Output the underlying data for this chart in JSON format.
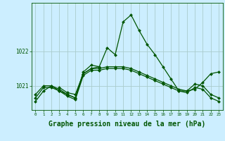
{
  "background_color": "#cceeff",
  "grid_color": "#aacccc",
  "line_color": "#005500",
  "marker_color": "#005500",
  "xlabel": "Graphe pression niveau de la mer (hPa)",
  "xlabel_fontsize": 7,
  "yticks": [
    1021,
    1022
  ],
  "ylim": [
    1020.3,
    1023.4
  ],
  "xlim": [
    -0.5,
    23.5
  ],
  "xticks": [
    0,
    1,
    2,
    3,
    4,
    5,
    6,
    7,
    8,
    9,
    10,
    11,
    12,
    13,
    14,
    15,
    16,
    17,
    18,
    19,
    20,
    21,
    22,
    23
  ],
  "series": [
    {
      "x": [
        0,
        1,
        2,
        3,
        4,
        5,
        6,
        7,
        8,
        9,
        10,
        11,
        12,
        13,
        14,
        15,
        16,
        17,
        18,
        19,
        20,
        21,
        22,
        23
      ],
      "y": [
        1020.55,
        1020.85,
        1021.0,
        1020.85,
        1020.75,
        1020.65,
        1021.4,
        1021.6,
        1021.55,
        1022.1,
        1021.9,
        1022.85,
        1023.05,
        1022.6,
        1022.2,
        1021.9,
        1021.55,
        1021.2,
        1020.85,
        1020.85,
        1020.9,
        1021.1,
        1021.35,
        1021.4
      ]
    },
    {
      "x": [
        0,
        1,
        2,
        3,
        4,
        5,
        6,
        7,
        8,
        9,
        10,
        11,
        12,
        13,
        14,
        15,
        16,
        17,
        18,
        19,
        20,
        21,
        22,
        23
      ],
      "y": [
        1020.75,
        1021.0,
        1021.0,
        1020.9,
        1020.75,
        1020.65,
        1021.35,
        1021.5,
        1021.5,
        1021.55,
        1021.55,
        1021.55,
        1021.5,
        1021.4,
        1021.3,
        1021.2,
        1021.1,
        1021.0,
        1020.9,
        1020.85,
        1021.05,
        1021.0,
        1020.75,
        1020.65
      ]
    },
    {
      "x": [
        0,
        1,
        2,
        3,
        4,
        5,
        6,
        7,
        8,
        9,
        10,
        11,
        12,
        13,
        14,
        15,
        16,
        17,
        18,
        19,
        20,
        21,
        22,
        23
      ],
      "y": [
        1020.65,
        1020.95,
        1020.95,
        1020.85,
        1020.7,
        1020.6,
        1021.3,
        1021.45,
        1021.45,
        1021.5,
        1021.5,
        1021.5,
        1021.45,
        1021.35,
        1021.25,
        1021.15,
        1021.05,
        1020.95,
        1020.85,
        1020.8,
        1020.95,
        1020.9,
        1020.65,
        1020.55
      ]
    },
    {
      "x": [
        3,
        4,
        5,
        6,
        7,
        8
      ],
      "y": [
        1020.95,
        1020.8,
        1020.75,
        1021.35,
        1021.5,
        1021.55
      ]
    }
  ]
}
